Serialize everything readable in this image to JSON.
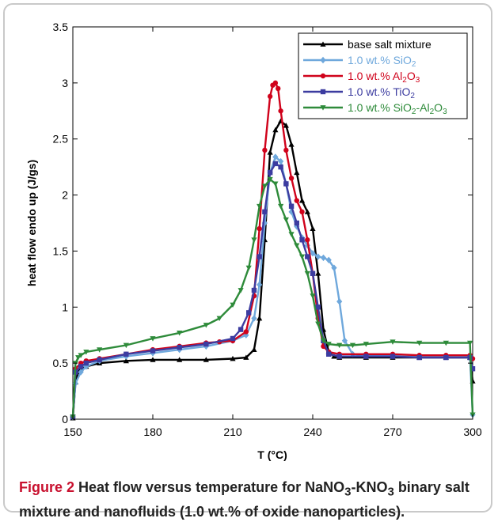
{
  "caption": {
    "label": "Figure 2",
    "text_a": " Heat flow versus temperature for NaNO",
    "sub_a": "3",
    "text_b": "-KNO",
    "sub_b": "3",
    "text_c": " binary salt mixture and nanofluids (1.0 wt.% of oxide nanoparticles)."
  },
  "chart_data": {
    "type": "line",
    "xlabel": "T (°C)",
    "ylabel": "heat flow endo up (J/gs)",
    "xlim": [
      150,
      300
    ],
    "ylim": [
      0,
      3.5
    ],
    "xticks": [
      150,
      180,
      210,
      240,
      270,
      300
    ],
    "yticks": [
      0,
      0.5,
      1,
      1.5,
      2,
      2.5,
      3,
      3.5
    ],
    "ytick_labels": [
      "0",
      "0.5",
      "1",
      "1.5",
      "2",
      "2.5",
      "3",
      "3.5"
    ],
    "grid": false,
    "legend_position": "top-right",
    "series": [
      {
        "name": "base salt mixture",
        "color": "#000000",
        "marker": "triangle-up",
        "x": [
          150,
          151,
          152,
          153,
          155,
          160,
          170,
          180,
          190,
          200,
          210,
          215,
          218,
          220,
          222,
          224,
          226,
          228,
          230,
          232,
          234,
          236,
          238,
          240,
          242,
          244,
          246,
          248,
          250,
          260,
          270,
          280,
          290,
          299,
          300
        ],
        "y": [
          0.01,
          0.33,
          0.42,
          0.45,
          0.47,
          0.5,
          0.52,
          0.53,
          0.53,
          0.53,
          0.54,
          0.55,
          0.62,
          0.9,
          1.6,
          2.38,
          2.58,
          2.66,
          2.62,
          2.45,
          2.2,
          1.95,
          1.85,
          1.7,
          1.3,
          0.8,
          0.6,
          0.56,
          0.55,
          0.55,
          0.55,
          0.55,
          0.55,
          0.55,
          0.34
        ]
      },
      {
        "name": "1.0 wt.% SiO2",
        "label_main": "1.0 wt.% SiO",
        "label_sub": "2",
        "color": "#6fa8dc",
        "marker": "diamond",
        "x": [
          150,
          151,
          153,
          155,
          160,
          170,
          180,
          190,
          200,
          210,
          215,
          218,
          220,
          222,
          224,
          226,
          228,
          230,
          232,
          234,
          236,
          238,
          240,
          242,
          244,
          246,
          248,
          250,
          252,
          255,
          260,
          270,
          280,
          290,
          299,
          300
        ],
        "y": [
          0.02,
          0.32,
          0.42,
          0.47,
          0.52,
          0.56,
          0.59,
          0.62,
          0.65,
          0.7,
          0.75,
          0.9,
          1.2,
          1.75,
          2.2,
          2.34,
          2.3,
          2.1,
          1.85,
          1.72,
          1.62,
          1.55,
          1.48,
          1.45,
          1.44,
          1.42,
          1.35,
          1.05,
          0.7,
          0.58,
          0.57,
          0.57,
          0.56,
          0.56,
          0.56,
          0.04
        ]
      },
      {
        "name": "1.0 wt.% Al2O3",
        "label_main": "1.0 wt.% Al",
        "label_sub1": "2",
        "label_mid": "O",
        "label_sub2": "3",
        "color": "#d0021b",
        "marker": "circle",
        "x": [
          150,
          151,
          153,
          155,
          160,
          170,
          180,
          190,
          200,
          205,
          210,
          215,
          218,
          220,
          222,
          224,
          225,
          226,
          227,
          228,
          230,
          232,
          234,
          236,
          238,
          240,
          242,
          244,
          246,
          250,
          260,
          270,
          280,
          290,
          299,
          300
        ],
        "y": [
          0.02,
          0.45,
          0.5,
          0.52,
          0.54,
          0.58,
          0.62,
          0.65,
          0.68,
          0.69,
          0.7,
          0.78,
          1.1,
          1.7,
          2.4,
          2.88,
          2.98,
          3.0,
          2.95,
          2.75,
          2.4,
          2.15,
          1.95,
          1.85,
          1.6,
          1.3,
          0.9,
          0.65,
          0.6,
          0.58,
          0.58,
          0.58,
          0.57,
          0.57,
          0.57,
          0.54
        ]
      },
      {
        "name": "1.0 wt.% TiO2",
        "label_main": "1.0 wt.% TiO",
        "label_sub": "2",
        "color": "#3c3ca0",
        "marker": "square",
        "x": [
          150,
          151,
          153,
          155,
          160,
          170,
          180,
          190,
          200,
          210,
          213,
          216,
          218,
          220,
          222,
          224,
          226,
          228,
          230,
          232,
          234,
          236,
          238,
          240,
          242,
          244,
          246,
          250,
          260,
          270,
          280,
          290,
          299,
          300
        ],
        "y": [
          0.02,
          0.42,
          0.47,
          0.5,
          0.53,
          0.58,
          0.61,
          0.64,
          0.67,
          0.72,
          0.8,
          0.95,
          1.15,
          1.45,
          1.85,
          2.2,
          2.28,
          2.25,
          2.1,
          1.9,
          1.75,
          1.6,
          1.45,
          1.3,
          1.0,
          0.7,
          0.58,
          0.56,
          0.56,
          0.56,
          0.55,
          0.55,
          0.55,
          0.45
        ]
      },
      {
        "name": "1.0 wt.% SiO2-Al2O3",
        "label_main": "1.0 wt.% SiO",
        "label_sub1": "2",
        "label_mid": "-Al",
        "label_sub2": "2",
        "label_mid2": "O",
        "label_sub3": "3",
        "color": "#2e8b3a",
        "marker": "triangle-down",
        "x": [
          150,
          151,
          152,
          153,
          155,
          160,
          170,
          180,
          190,
          200,
          205,
          210,
          213,
          216,
          218,
          220,
          222,
          224,
          226,
          228,
          230,
          232,
          234,
          236,
          238,
          240,
          242,
          244,
          246,
          250,
          255,
          260,
          270,
          280,
          290,
          299,
          300
        ],
        "y": [
          0.02,
          0.5,
          0.55,
          0.57,
          0.6,
          0.62,
          0.66,
          0.72,
          0.77,
          0.84,
          0.9,
          1.02,
          1.15,
          1.35,
          1.6,
          1.9,
          2.08,
          2.14,
          2.1,
          1.9,
          1.78,
          1.65,
          1.55,
          1.45,
          1.3,
          1.1,
          0.85,
          0.7,
          0.67,
          0.66,
          0.66,
          0.67,
          0.69,
          0.68,
          0.68,
          0.68,
          0.04
        ]
      }
    ]
  }
}
